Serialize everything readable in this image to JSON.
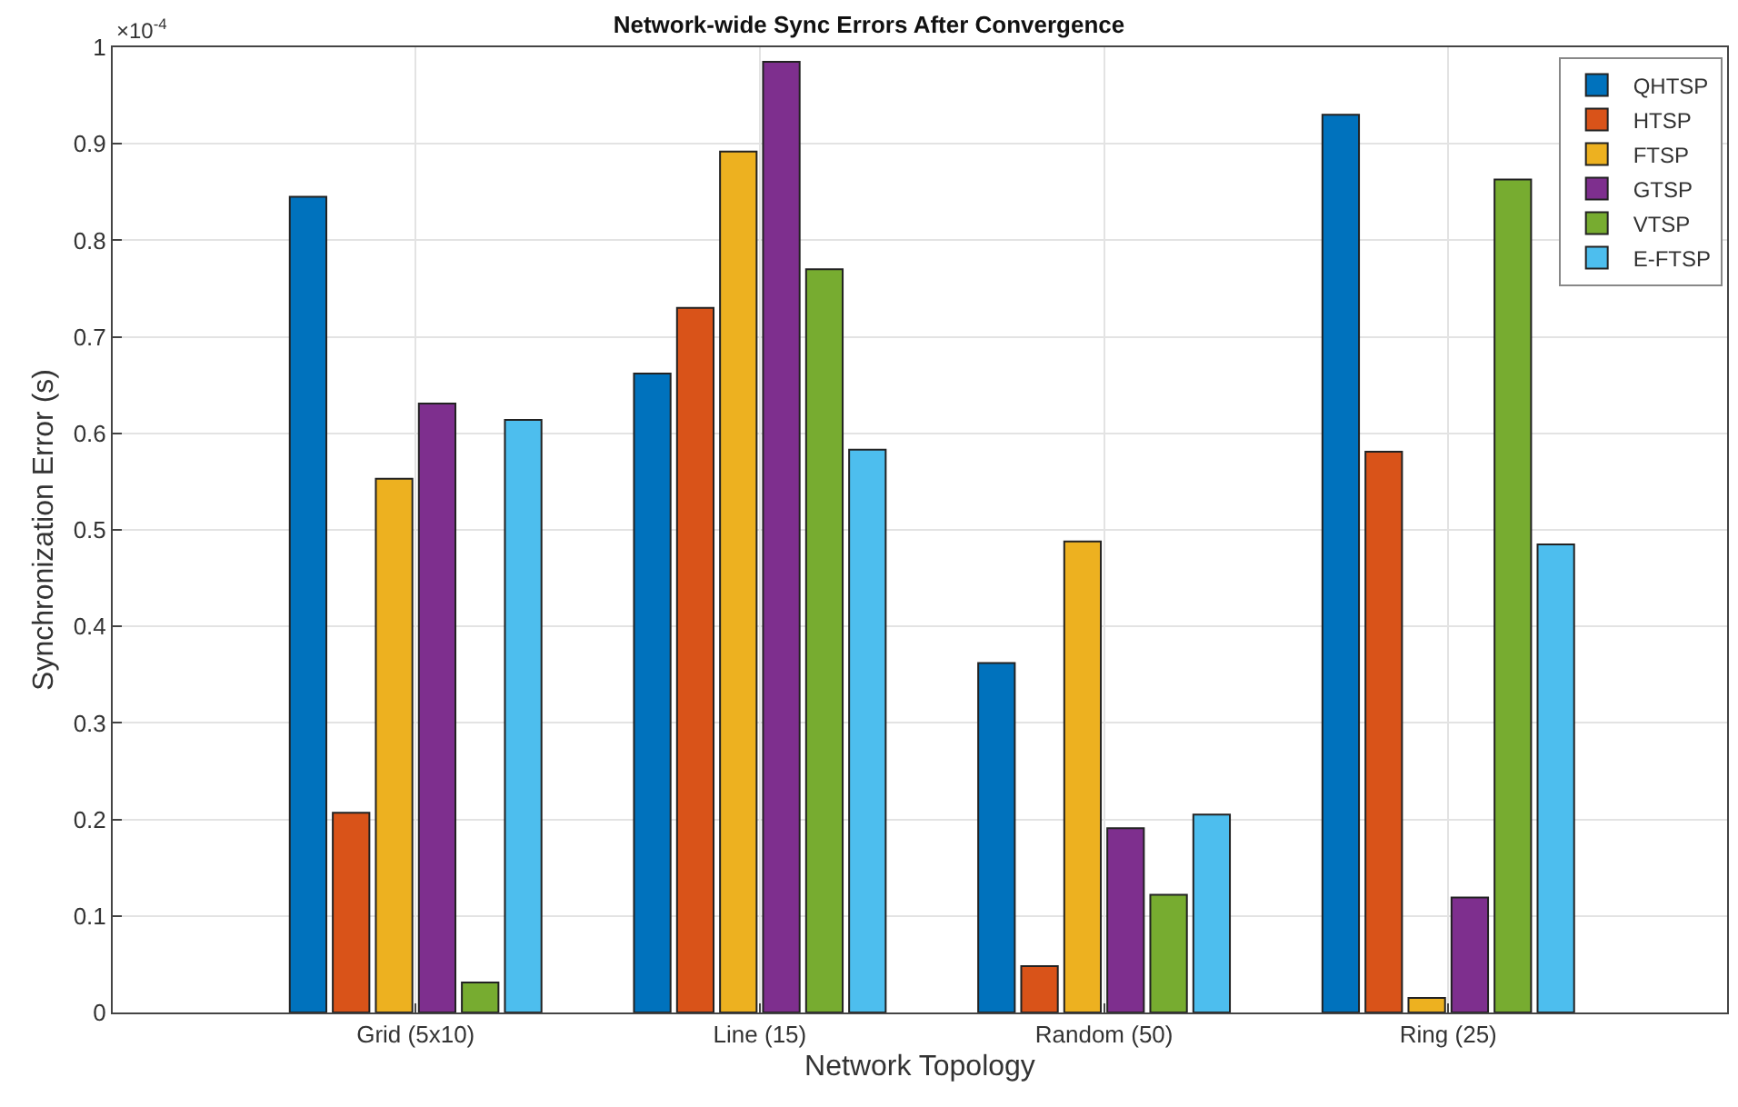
{
  "chart_data": {
    "type": "bar",
    "title": "Network-wide Sync Errors After Convergence",
    "xlabel": "Network Topology",
    "ylabel": "Synchronization Error (s)",
    "annotations": [
      "×10$^{-4}$"
    ],
    "categories": [
      "Grid (5x10)",
      "Line (15)",
      "Random (50)",
      "Ring (25)"
    ],
    "series": [
      {
        "name": "QHTSP",
        "color": "#0072bd",
        "values": [
          0.845,
          0.662,
          0.362,
          0.93
        ]
      },
      {
        "name": "HTSP",
        "color": "#d95319",
        "values": [
          0.207,
          0.73,
          0.048,
          0.581
        ]
      },
      {
        "name": "FTSP",
        "color": "#edb120",
        "values": [
          0.553,
          0.892,
          0.488,
          0.015
        ]
      },
      {
        "name": "GTSP",
        "color": "#7e2f8e",
        "values": [
          0.631,
          0.985,
          0.191,
          0.119
        ]
      },
      {
        "name": "VTSP",
        "color": "#77ac30",
        "values": [
          0.031,
          0.77,
          0.122,
          0.863
        ]
      },
      {
        "name": "E-FTSP",
        "color": "#4dbeee",
        "values": [
          0.614,
          0.583,
          0.205,
          0.485
        ]
      }
    ],
    "ylim": [
      0,
      1
    ],
    "yticks": [
      0,
      0.1,
      0.2,
      0.3,
      0.4,
      0.5,
      0.6,
      0.7,
      0.8,
      0.9,
      1
    ],
    "grid": true,
    "legend": "top right"
  }
}
